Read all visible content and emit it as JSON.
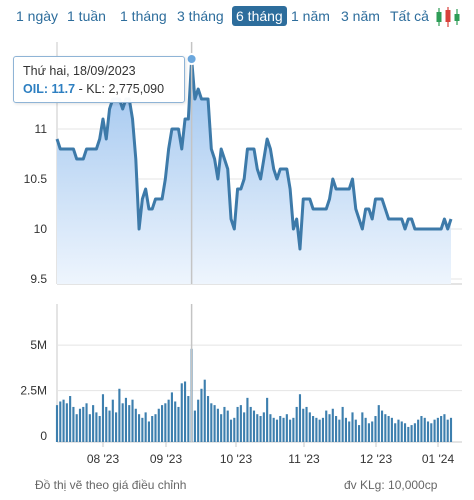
{
  "range_tabs": [
    {
      "label": "1 ngày",
      "active": false
    },
    {
      "label": "1 tuần",
      "active": false
    },
    {
      "label": "1 tháng",
      "active": false
    },
    {
      "label": "3 tháng",
      "active": false
    },
    {
      "label": "6 tháng",
      "active": true
    },
    {
      "label": "1 năm",
      "active": false
    },
    {
      "label": "3 năm",
      "active": false
    },
    {
      "label": "Tất cả",
      "active": false
    }
  ],
  "chart_type_icon": "candlestick-icon",
  "tooltip": {
    "date": "Thứ hai, 18/09/2023",
    "series_label": "OIL: 11.7",
    "volume_text": " - KL: 2,775,090"
  },
  "footer": {
    "note": "Đồ thị vẽ theo giá điều chỉnh",
    "unit": "đv KLg: 10,000cp"
  },
  "colors": {
    "accent": "#2d6d9c",
    "line": "#3d7aa9",
    "volume_bar": "#3d7fae",
    "fill_top": "#9cc3ee",
    "fill_bottom": "#eef5fd"
  },
  "chart_data": [
    {
      "type": "area",
      "ylim": [
        9.5,
        11.5
      ],
      "yticks": [
        "9.5",
        "10",
        "10.5",
        "11"
      ],
      "grid": true,
      "values": [
        10.9,
        10.8,
        10.8,
        10.8,
        10.8,
        10.8,
        10.7,
        10.7,
        10.7,
        10.8,
        10.8,
        10.8,
        10.8,
        10.9,
        11.1,
        10.9,
        11.2,
        11.3,
        11.3,
        11.3,
        11.2,
        11.3,
        11.3,
        11.1,
        10.7,
        10.0,
        10.3,
        10.4,
        10.2,
        10.2,
        10.3,
        10.3,
        10.3,
        10.5,
        10.8,
        11.0,
        11.0,
        11.0,
        10.8,
        11.1,
        11.1,
        11.7,
        11.3,
        11.4,
        11.3,
        11.3,
        11.3,
        10.8,
        10.7,
        10.5,
        10.8,
        10.7,
        10.6,
        10.1,
        10.0,
        10.4,
        10.4,
        10.5,
        10.8,
        10.8,
        10.8,
        10.6,
        10.5,
        10.7,
        10.9,
        10.8,
        10.6,
        10.5,
        10.6,
        10.6,
        10.6,
        10.4,
        10.0,
        10.1,
        9.8,
        10.3,
        10.3,
        10.3,
        10.2,
        10.2,
        10.2,
        10.2,
        10.2,
        10.3,
        10.5,
        10.4,
        10.4,
        10.4,
        10.4,
        10.4,
        10.5,
        10.2,
        10.1,
        10.0,
        10.2,
        10.2,
        10.1,
        10.3,
        10.3,
        10.3,
        10.2,
        10.1,
        10.1,
        10.1,
        10.1,
        10.1,
        10.0,
        10.1,
        10.1,
        10.0,
        10.0,
        10.0,
        10.0,
        10.0,
        10.0,
        10.0,
        10.0,
        10.0,
        10.1,
        10.0,
        10.1
      ]
    },
    {
      "type": "bar",
      "ylim": [
        0,
        6
      ],
      "yticks": [
        "0",
        "2.5M",
        "5M"
      ],
      "grid": true,
      "xticks": [
        "08 '23",
        "09 '23",
        "10 '23",
        "11 '23",
        "12 '23",
        "01 '24"
      ],
      "values": [
        1.7,
        1.9,
        2.0,
        1.8,
        2.2,
        1.6,
        1.2,
        1.5,
        1.6,
        1.8,
        1.2,
        1.7,
        1.3,
        1.1,
        2.3,
        1.6,
        1.4,
        2.0,
        1.3,
        2.6,
        1.8,
        2.1,
        1.7,
        2.0,
        1.5,
        1.2,
        1.0,
        1.3,
        0.8,
        1.1,
        1.2,
        1.5,
        1.7,
        1.8,
        2.0,
        2.4,
        1.9,
        1.6,
        2.9,
        3.0,
        2.2,
        4.8,
        1.4,
        2.0,
        2.6,
        3.1,
        2.2,
        1.8,
        1.7,
        1.5,
        1.2,
        1.6,
        1.4,
        0.9,
        1.0,
        1.6,
        1.7,
        1.3,
        2.1,
        1.6,
        1.4,
        1.2,
        1.1,
        1.3,
        2.1,
        1.2,
        1.0,
        0.9,
        1.1,
        1.0,
        1.2,
        0.9,
        1.0,
        1.6,
        2.3,
        1.5,
        1.6,
        1.3,
        1.1,
        1.0,
        0.9,
        1.0,
        1.4,
        1.2,
        1.5,
        1.1,
        0.9,
        1.6,
        1.0,
        0.8,
        1.3,
        0.9,
        0.6,
        1.3,
        1.0,
        0.7,
        0.8,
        1.1,
        1.7,
        1.4,
        1.2,
        1.1,
        1.0,
        0.7,
        0.9,
        0.8,
        0.7,
        0.5,
        0.6,
        0.7,
        0.9,
        1.1,
        1.0,
        0.8,
        0.7,
        0.9,
        1.0,
        1.1,
        1.2,
        0.9,
        1.0
      ]
    }
  ]
}
